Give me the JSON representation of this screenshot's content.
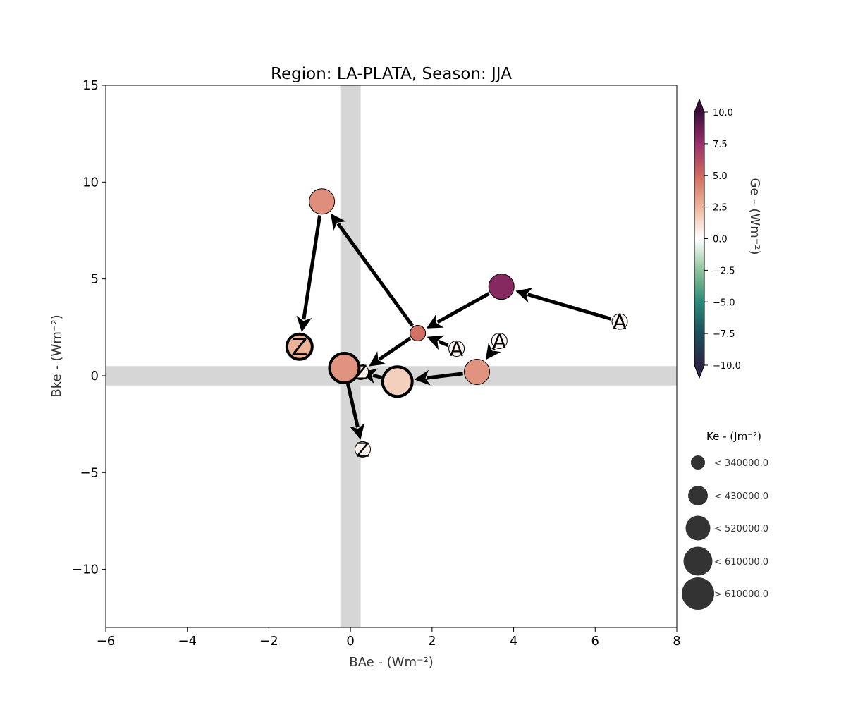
{
  "chart_data": {
    "type": "scatter",
    "title": "Region: LA-PLATA, Season: JJA",
    "xlabel": "BAe - (Wm⁻²)",
    "ylabel": "Bke - (Wm⁻²)",
    "xlim": [
      -6,
      8
    ],
    "ylim": [
      -13,
      15
    ],
    "xticks": [
      -6,
      -4,
      -2,
      0,
      2,
      4,
      6,
      8
    ],
    "yticks": [
      -10,
      -5,
      0,
      5,
      10,
      15
    ],
    "xtick_labels": [
      "−6",
      "−4",
      "−2",
      "0",
      "2",
      "4",
      "6",
      "8"
    ],
    "ytick_labels": [
      "−10",
      "−5",
      "0",
      "5",
      "10",
      "15"
    ],
    "shaded_bands": {
      "vertical_x": [
        -0.25,
        0.25
      ],
      "horizontal_y": [
        -0.5,
        0.5
      ]
    },
    "colorbar": {
      "label": "Ge - (Wm⁻²)",
      "range": [
        -10,
        10
      ],
      "ticks": [
        "10.0",
        "7.5",
        "5.0",
        "2.5",
        "0.0",
        "−2.5",
        "−5.0",
        "−7.5",
        "−10.0"
      ],
      "colors": [
        "#2b2744",
        "#1b4e5b",
        "#2a8a79",
        "#8cc49a",
        "#ffffff",
        "#edb59a",
        "#d06a5e",
        "#9a2f6b",
        "#3b0f3a"
      ]
    },
    "size_legend": {
      "title": "Ke - (Jm⁻²)",
      "entries": [
        "< 340000.0",
        "< 430000.0",
        "< 520000.0",
        "< 610000.0",
        "> 610000.0"
      ],
      "color": "#333333"
    },
    "series": [
      {
        "points": [
          {
            "x": 6.6,
            "y": 2.8,
            "ge": 0.3,
            "ke_class": 0,
            "label": "A"
          },
          {
            "x": 3.7,
            "y": 4.6,
            "ge": 8.0,
            "ke_class": 2,
            "label": ""
          },
          {
            "x": 1.65,
            "y": 2.2,
            "ge": 4.8,
            "ke_class": 0,
            "label": ""
          },
          {
            "x": -0.7,
            "y": 9.0,
            "ge": 3.8,
            "ke_class": 2,
            "label": ""
          },
          {
            "x": -1.25,
            "y": 1.5,
            "ge": 2.6,
            "ke_class": 2,
            "label": "Z"
          }
        ]
      },
      {
        "points": [
          {
            "x": 2.6,
            "y": 1.4,
            "ge": 0.4,
            "ke_class": 0,
            "label": "A"
          },
          {
            "x": 1.65,
            "y": 2.2,
            "ge": 4.8,
            "ke_class": 0,
            "label": ""
          },
          {
            "x": 0.25,
            "y": 0.2,
            "ge": 0.5,
            "ke_class": 0,
            "label": "Z"
          }
        ]
      },
      {
        "points": [
          {
            "x": 3.65,
            "y": 1.8,
            "ge": 0.3,
            "ke_class": 0,
            "label": "A"
          },
          {
            "x": 3.1,
            "y": 0.2,
            "ge": 3.6,
            "ke_class": 2,
            "label": ""
          },
          {
            "x": 1.15,
            "y": -0.3,
            "ge": 1.6,
            "ke_class": 3,
            "label": ""
          },
          {
            "x": -0.15,
            "y": 0.4,
            "ge": 3.6,
            "ke_class": 3,
            "label": ""
          },
          {
            "x": 0.3,
            "y": -3.8,
            "ge": 0.5,
            "ke_class": 0,
            "label": "Z"
          }
        ]
      }
    ],
    "end_marker": "Z"
  }
}
